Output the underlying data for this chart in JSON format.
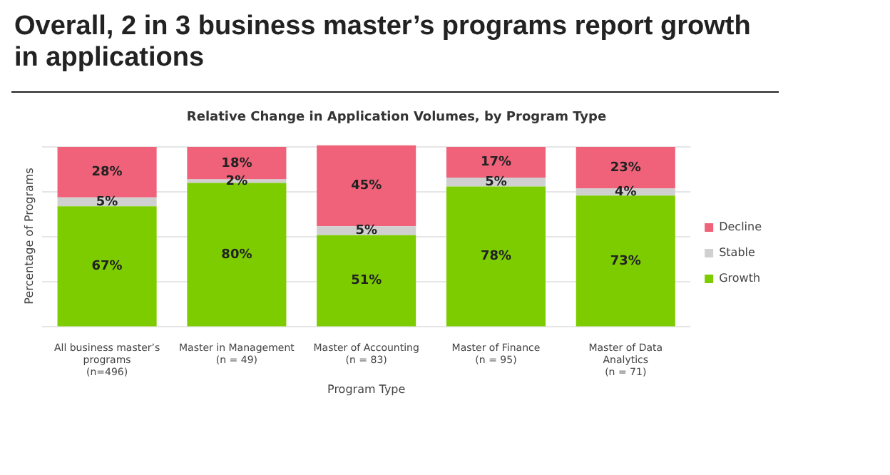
{
  "chart_data": {
    "type": "bar",
    "stacked": true,
    "title": "Overall, 2 in 3 business master’s programs report growth in applications",
    "subtitle": "Relative Change in Application Volumes, by Program Type",
    "xlabel": "Program Type",
    "ylabel": "Percentage of Programs",
    "categories": [
      "All business master’s programs (n=496)",
      "Master in Management (n = 49)",
      "Master of Accounting (n = 83)",
      "Master of Finance (n = 95)",
      "Master of Data Analytics (n = 71)"
    ],
    "series": [
      {
        "name": "Growth",
        "color": "#7dcc00",
        "values": [
          67,
          80,
          51,
          78,
          73
        ],
        "value_labels": [
          "67%",
          "80%",
          "51%",
          "78%",
          "73%"
        ]
      },
      {
        "name": "Stable",
        "color": "#d0d0d0",
        "values": [
          5,
          2,
          5,
          5,
          4
        ],
        "value_labels": [
          "5%",
          "2%",
          "5%",
          "5%",
          "4%"
        ]
      },
      {
        "name": "Decline",
        "color": "#f0627a",
        "values": [
          28,
          18,
          45,
          17,
          23
        ],
        "value_labels": [
          "28%",
          "18%",
          "45%",
          "17%",
          "23%"
        ]
      }
    ],
    "ylim": [
      0,
      101
    ],
    "yticks": [
      {
        "value": 0,
        "label": null
      },
      {
        "value": 25,
        "label": null
      },
      {
        "value": 50,
        "label": null
      },
      {
        "value": 75,
        "label": null
      },
      {
        "value": 100,
        "label": null
      }
    ],
    "grid": "y",
    "legend": "right",
    "tick_labels": "x"
  }
}
